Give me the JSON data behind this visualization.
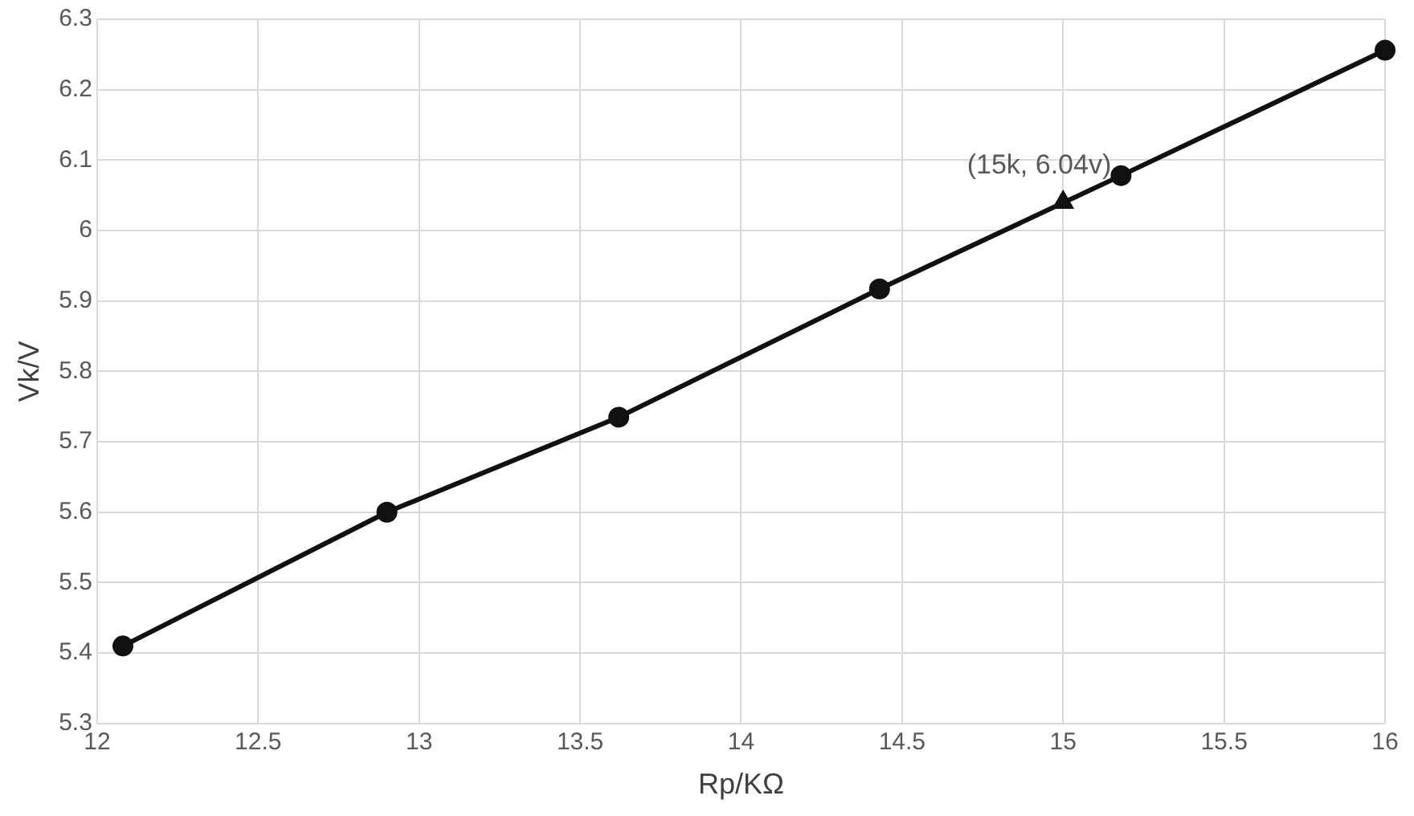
{
  "chart_data": {
    "type": "line",
    "xlabel": "Rp/KΩ",
    "ylabel": "Vk/V",
    "xlim": [
      12,
      16
    ],
    "xticks": [
      12,
      12.5,
      13,
      13.5,
      14,
      14.5,
      15,
      15.5,
      16
    ],
    "ylim": [
      5.3,
      6.3
    ],
    "yticks": [
      5.3,
      5.4,
      5.5,
      5.6,
      5.7,
      5.8,
      5.9,
      6,
      6.1,
      6.2,
      6.3
    ],
    "grid": true,
    "legend": false,
    "series": [
      {
        "color": "#111111",
        "marker": "circle",
        "x": [
          12.08,
          12.9,
          13.62,
          14.43,
          15.18,
          16.0
        ],
        "values": [
          5.41,
          5.6,
          5.735,
          5.917,
          6.078,
          6.256
        ]
      },
      {
        "type": "scatter",
        "color": "#111111",
        "marker": "triangle",
        "x": [
          15.0
        ],
        "values": [
          6.04
        ]
      }
    ],
    "annotations": [
      {
        "text": "(15k, 6.04v)",
        "x": 15,
        "y": 6.04
      }
    ]
  }
}
